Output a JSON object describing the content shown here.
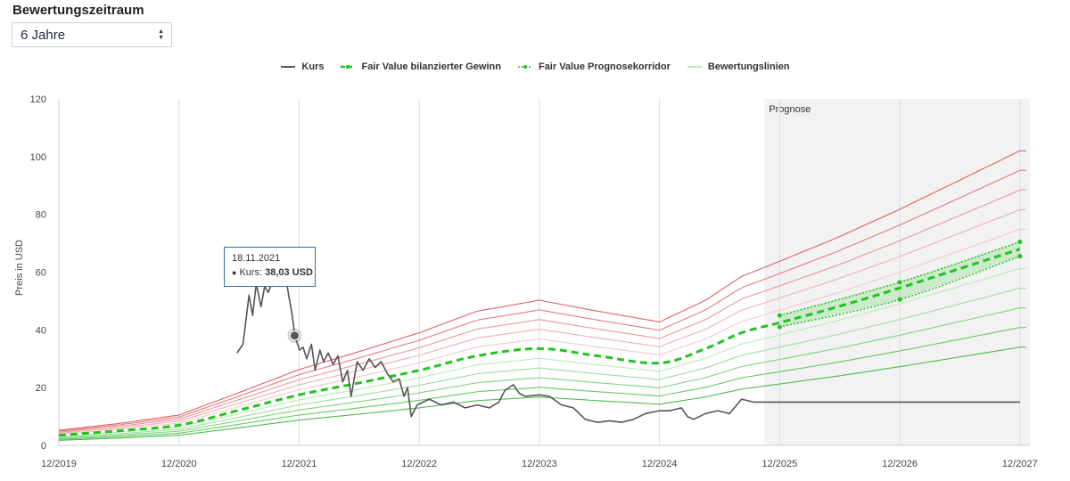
{
  "controls": {
    "period_label": "Bewertungszeitraum",
    "period_value": "6 Jahre"
  },
  "legend": [
    {
      "label": "Kurs",
      "color": "#555555",
      "style": "solid"
    },
    {
      "label": "Fair Value bilanzierter Gewinn",
      "color": "#1fc41f",
      "style": "dashed"
    },
    {
      "label": "Fair Value Prognosekorridor",
      "color": "#1fc41f",
      "style": "dotted"
    },
    {
      "label": "Bewertungslinien",
      "color": "#9ee29e",
      "style": "thin"
    }
  ],
  "tooltip": {
    "date": "18.11.2021",
    "series_label": "Kurs:",
    "value_text": "38,03 USD"
  },
  "chart_data": {
    "type": "line",
    "ylabel": "Preis in USD",
    "ylim": [
      0,
      120
    ],
    "yticks": [
      0,
      20,
      40,
      60,
      80,
      100,
      120
    ],
    "x_range": [
      2019.917,
      2028.0
    ],
    "xticks": [
      {
        "value": 2019.917,
        "label": "12/2019"
      },
      {
        "value": 2020.917,
        "label": "12/2020"
      },
      {
        "value": 2021.917,
        "label": "12/2021"
      },
      {
        "value": 2022.917,
        "label": "12/2022"
      },
      {
        "value": 2023.917,
        "label": "12/2023"
      },
      {
        "value": 2024.917,
        "label": "12/2024"
      },
      {
        "value": 2025.917,
        "label": "12/2025"
      },
      {
        "value": 2026.917,
        "label": "12/2026"
      },
      {
        "value": 2027.917,
        "label": "12/2027"
      }
    ],
    "forecast_region": {
      "label": "Prognose",
      "start": 2025.79,
      "color": "#f2f2f2"
    },
    "grid": "vertical",
    "legend_position": "top",
    "fair_value": {
      "name": "Fair Value bilanzierter Gewinn",
      "color": "#1fc41f",
      "points": [
        [
          2019.917,
          3.5
        ],
        [
          2020.4,
          5
        ],
        [
          2020.917,
          7
        ],
        [
          2021.4,
          12
        ],
        [
          2021.917,
          17.5
        ],
        [
          2022.4,
          21.5
        ],
        [
          2022.917,
          26
        ],
        [
          2023.4,
          31
        ],
        [
          2023.917,
          33.5
        ],
        [
          2024.4,
          31
        ],
        [
          2024.917,
          28.5
        ],
        [
          2025.3,
          33.5
        ],
        [
          2025.6,
          39
        ],
        [
          2025.917,
          42.5
        ],
        [
          2026.4,
          48
        ],
        [
          2026.917,
          54.5
        ],
        [
          2027.917,
          68
        ]
      ]
    },
    "forecast_corridor": {
      "name": "Fair Value Prognosekorridor",
      "upper": [
        [
          2025.917,
          45
        ],
        [
          2026.917,
          56.5
        ],
        [
          2027.917,
          70.5
        ]
      ],
      "lower": [
        [
          2025.917,
          41
        ],
        [
          2026.917,
          50.5
        ],
        [
          2027.917,
          65.5
        ]
      ]
    },
    "valuation_lines": {
      "name": "Bewertungslinien",
      "factors": [
        1.5,
        1.4,
        1.3,
        1.2,
        1.1,
        0.9,
        0.8,
        0.7,
        0.6,
        0.5
      ],
      "colors": [
        "#e06060",
        "#e67a7a",
        "#ec9696",
        "#f0b0b0",
        "#f5c8c8",
        "#b8ecb8",
        "#9ae09a",
        "#7ed47e",
        "#64c864",
        "#4cbc4c"
      ]
    },
    "price": {
      "name": "Kurs",
      "color": "#555555",
      "points": [
        [
          2021.4,
          32
        ],
        [
          2021.45,
          35
        ],
        [
          2021.5,
          52
        ],
        [
          2021.53,
          45
        ],
        [
          2021.56,
          56
        ],
        [
          2021.6,
          48
        ],
        [
          2021.63,
          55
        ],
        [
          2021.66,
          53
        ],
        [
          2021.7,
          57
        ],
        [
          2021.73,
          58
        ],
        [
          2021.77,
          56
        ],
        [
          2021.8,
          60
        ],
        [
          2021.83,
          52
        ],
        [
          2021.86,
          45
        ],
        [
          2021.88,
          38.03
        ],
        [
          2021.92,
          33
        ],
        [
          2021.95,
          34
        ],
        [
          2021.98,
          30
        ],
        [
          2022.02,
          35
        ],
        [
          2022.05,
          26
        ],
        [
          2022.09,
          33
        ],
        [
          2022.12,
          29
        ],
        [
          2022.16,
          32
        ],
        [
          2022.2,
          28
        ],
        [
          2022.24,
          31
        ],
        [
          2022.28,
          22
        ],
        [
          2022.32,
          26
        ],
        [
          2022.35,
          17
        ],
        [
          2022.4,
          29
        ],
        [
          2022.45,
          26
        ],
        [
          2022.5,
          30
        ],
        [
          2022.55,
          27
        ],
        [
          2022.6,
          29
        ],
        [
          2022.65,
          25
        ],
        [
          2022.7,
          22
        ],
        [
          2022.75,
          23
        ],
        [
          2022.79,
          17
        ],
        [
          2022.82,
          20
        ],
        [
          2022.85,
          10
        ],
        [
          2022.9,
          14
        ],
        [
          2022.95,
          15
        ],
        [
          2023.0,
          16
        ],
        [
          2023.1,
          14
        ],
        [
          2023.2,
          15
        ],
        [
          2023.3,
          13
        ],
        [
          2023.4,
          14
        ],
        [
          2023.5,
          13
        ],
        [
          2023.58,
          15
        ],
        [
          2023.63,
          19
        ],
        [
          2023.7,
          21
        ],
        [
          2023.75,
          18
        ],
        [
          2023.8,
          17
        ],
        [
          2023.917,
          17.5
        ],
        [
          2024.0,
          17
        ],
        [
          2024.1,
          14
        ],
        [
          2024.2,
          13
        ],
        [
          2024.3,
          9
        ],
        [
          2024.4,
          8
        ],
        [
          2024.5,
          8.5
        ],
        [
          2024.6,
          8
        ],
        [
          2024.7,
          9
        ],
        [
          2024.8,
          11
        ],
        [
          2024.917,
          12
        ],
        [
          2025.0,
          12
        ],
        [
          2025.1,
          13
        ],
        [
          2025.15,
          10
        ],
        [
          2025.2,
          9
        ],
        [
          2025.3,
          11
        ],
        [
          2025.4,
          12
        ],
        [
          2025.5,
          11
        ],
        [
          2025.6,
          16
        ],
        [
          2025.7,
          15
        ],
        [
          2025.79,
          15
        ],
        [
          2027.917,
          15
        ]
      ]
    },
    "highlight": {
      "x": 2021.88,
      "y": 38.03
    }
  }
}
